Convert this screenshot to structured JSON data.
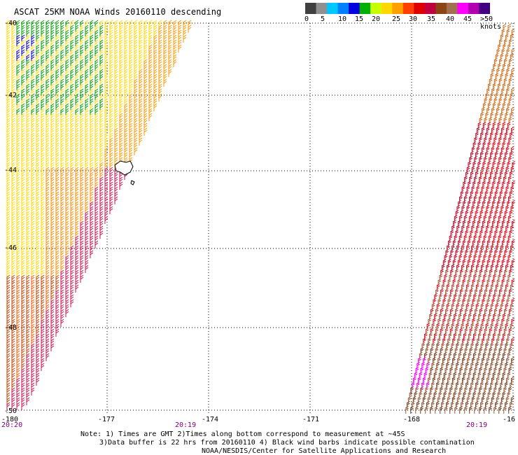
{
  "title": "ASCAT 25KM NOAA Winds 20160110 descending",
  "colorbar": {
    "colors": [
      "#404040",
      "#909090",
      "#00c8ff",
      "#0080ff",
      "#0000e0",
      "#00b000",
      "#c8ff00",
      "#ffd800",
      "#ffa000",
      "#ff4000",
      "#e00000",
      "#c00040",
      "#8b4513",
      "#a07050",
      "#ff00ff",
      "#b000b0",
      "#400080"
    ],
    "tick_labels": [
      "0",
      "5",
      "10",
      "15",
      "20",
      "25",
      "30",
      "35",
      "40",
      "45",
      ">50 knots"
    ]
  },
  "map": {
    "lat_labels": [
      "-40",
      "-42",
      "-44",
      "-46",
      "-48",
      "-50"
    ],
    "lon_labels": [
      "-180",
      "-177",
      "-174",
      "-171",
      "-168",
      "-16"
    ],
    "time_labels": [
      "20:20",
      "20:19",
      "20:19"
    ]
  },
  "notes": {
    "line1": "Note: 1) Times are GMT 2)Times along bottom correspond to measurement at ~45S",
    "line2": "3)Data buffer is 22 hrs from 20160110 4) Black wind barbs indicate possible contamination",
    "line3": "NOAA/NESDIS/Center for Satellite Applications and Research"
  }
}
